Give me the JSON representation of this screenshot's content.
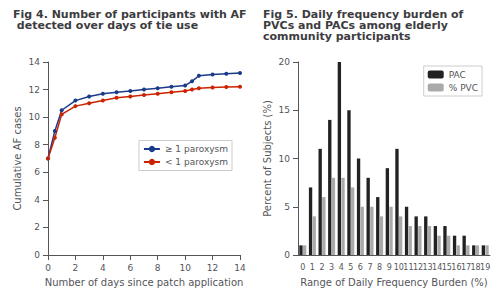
{
  "chart_data": [
    {
      "type": "line",
      "title": "Fig 4. Number of participants with AF detected over days of tie use",
      "x_label": "Number of days since patch application",
      "y_label": "Cumulative AF cases",
      "x": [
        0,
        0.5,
        1,
        2,
        3,
        4,
        5,
        6,
        7,
        8,
        9,
        10,
        10.5,
        11,
        12,
        13,
        14
      ],
      "series": [
        {
          "name": "≥ 1 paroxysm",
          "color": "#1A3A8A",
          "marker": "o",
          "values": [
            7,
            9,
            10.5,
            11.2,
            11.5,
            11.7,
            11.8,
            11.9,
            12.0,
            12.1,
            12.2,
            12.3,
            12.6,
            13.0,
            13.1,
            13.15,
            13.2
          ]
        },
        {
          "name": "< 1 paroxysm",
          "color": "#CC2200",
          "marker": "o",
          "values": [
            7,
            8.5,
            10.2,
            10.8,
            11.0,
            11.2,
            11.4,
            11.5,
            11.6,
            11.7,
            11.8,
            11.9,
            12.0,
            12.1,
            12.15,
            12.18,
            12.2
          ]
        }
      ],
      "xlim": [
        0,
        14
      ],
      "xticks": [
        0,
        2,
        4,
        6,
        8,
        10,
        12,
        14
      ],
      "ylim": [
        0,
        14
      ],
      "yticks": [
        0,
        2,
        4,
        6,
        8,
        10,
        12,
        14
      ],
      "grid": false,
      "legend": "right"
    },
    {
      "type": "bar",
      "title": "Fig 5. Daily frequency burden of PVCs and PACs among elderly community participants",
      "x_label": "Range of Daily Frequency Burden (%)",
      "y_label": "Percent of Subjects (%)",
      "categories": [
        "0",
        "1",
        "2",
        "3",
        "4",
        "5",
        "6",
        "7",
        "8",
        "9",
        "10",
        "11",
        "12",
        "13",
        "14",
        "15",
        "16",
        "17",
        "18",
        "19"
      ],
      "series": [
        {
          "name": "PAC",
          "color": "#222222",
          "values": [
            1,
            7,
            11,
            14,
            20,
            15,
            10,
            8,
            6,
            9,
            11,
            5,
            4,
            4,
            3,
            3,
            2,
            2,
            1,
            1
          ]
        },
        {
          "name": "% PVC",
          "color": "#AAAAAA",
          "values": [
            1,
            4,
            6,
            8,
            8,
            7,
            5,
            5,
            4,
            5,
            4,
            3,
            3,
            3,
            2,
            2,
            1,
            1,
            1,
            1
          ]
        }
      ],
      "ylim": [
        0,
        20
      ],
      "yticks": [
        0,
        5,
        10,
        15,
        20
      ],
      "grid": false,
      "legend": "upper right"
    }
  ]
}
